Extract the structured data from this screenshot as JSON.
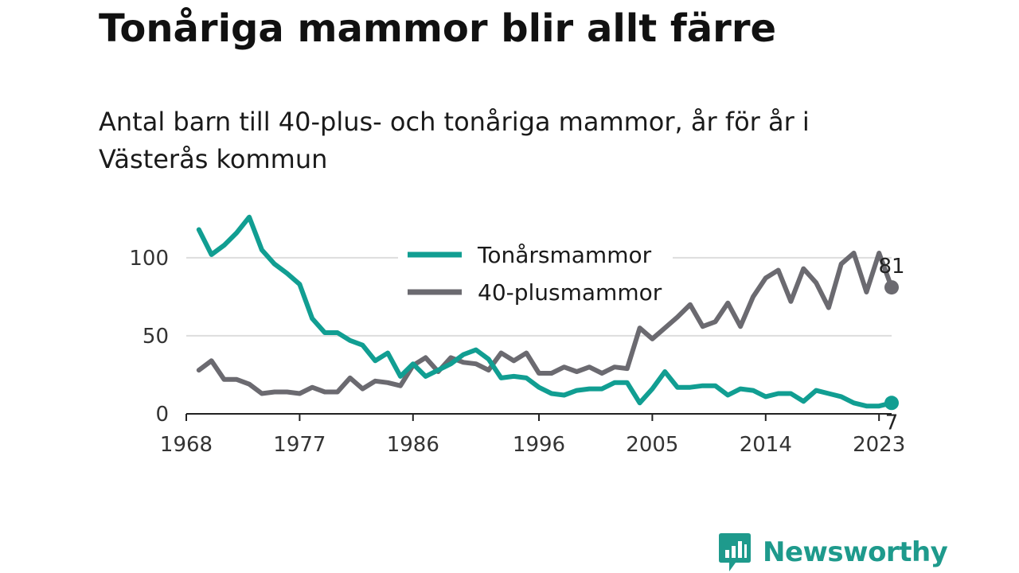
{
  "header": {
    "title": "Tonåriga mammor blir allt färre",
    "subtitle": "Antal barn till 40-plus- och tonåriga mammor, år för år i Västerås kommun"
  },
  "brand": {
    "name": "Newsworthy",
    "color": "#1e9a8c",
    "icon": "newsworthy-logo-icon"
  },
  "chart_data": {
    "type": "line",
    "xlim": [
      1968,
      2024
    ],
    "ylim": [
      0,
      130
    ],
    "x_ticks": [
      "1968",
      "1977",
      "1986",
      "1996",
      "2005",
      "2014",
      "2023"
    ],
    "x_tick_values": [
      1968,
      1977,
      1986,
      1996,
      2005,
      2014,
      2023
    ],
    "y_ticks": [
      "0",
      "50",
      "100"
    ],
    "y_tick_values": [
      0,
      50,
      100
    ],
    "grid": true,
    "legend_position": "top-center",
    "x": [
      1969,
      1970,
      1971,
      1972,
      1973,
      1974,
      1975,
      1976,
      1977,
      1978,
      1979,
      1980,
      1981,
      1982,
      1983,
      1984,
      1985,
      1986,
      1987,
      1988,
      1989,
      1990,
      1991,
      1992,
      1993,
      1994,
      1995,
      1996,
      1997,
      1998,
      1999,
      2000,
      2001,
      2002,
      2003,
      2004,
      2005,
      2006,
      2007,
      2008,
      2009,
      2010,
      2011,
      2012,
      2013,
      2014,
      2015,
      2016,
      2017,
      2018,
      2019,
      2020,
      2021,
      2022,
      2023,
      2024
    ],
    "series": [
      {
        "name": "Tonårsmammor",
        "color": "#119e92",
        "end_label": "7",
        "values": [
          118,
          102,
          108,
          116,
          126,
          105,
          96,
          90,
          83,
          61,
          52,
          52,
          47,
          44,
          34,
          39,
          24,
          32,
          24,
          28,
          32,
          38,
          41,
          35,
          23,
          24,
          23,
          17,
          13,
          12,
          15,
          16,
          16,
          20,
          20,
          7,
          16,
          27,
          17,
          17,
          18,
          18,
          12,
          16,
          15,
          11,
          13,
          13,
          8,
          15,
          13,
          11,
          7,
          5,
          5,
          7
        ]
      },
      {
        "name": "40-plusmammor",
        "color": "#6b6a70",
        "end_label": "81",
        "values": [
          28,
          34,
          22,
          22,
          19,
          13,
          14,
          14,
          13,
          17,
          14,
          14,
          23,
          16,
          21,
          20,
          18,
          31,
          36,
          27,
          36,
          33,
          32,
          28,
          39,
          34,
          39,
          26,
          26,
          30,
          27,
          30,
          26,
          30,
          29,
          55,
          48,
          55,
          62,
          70,
          56,
          59,
          71,
          56,
          75,
          87,
          92,
          72,
          93,
          84,
          68,
          96,
          103,
          78,
          103,
          81
        ]
      }
    ]
  }
}
